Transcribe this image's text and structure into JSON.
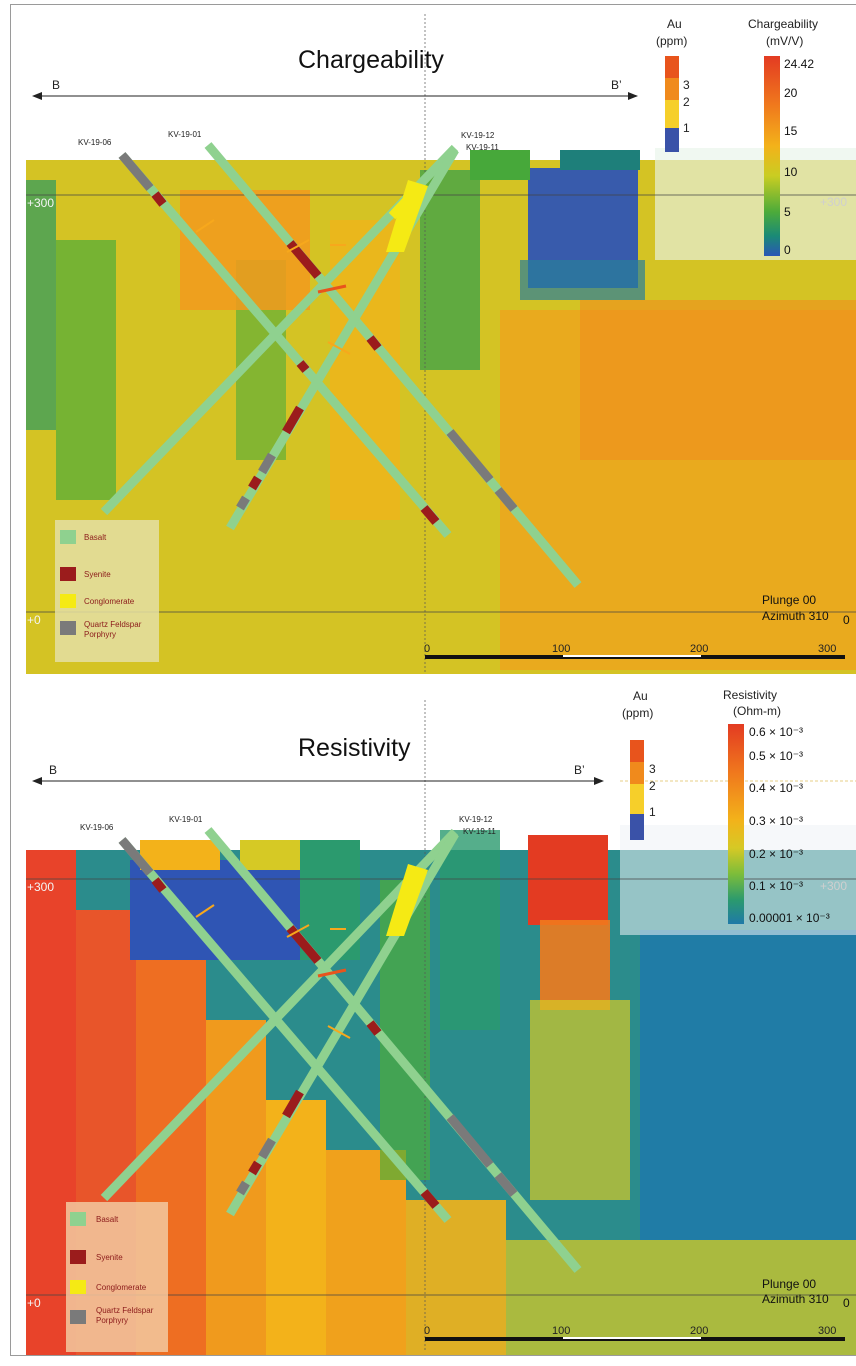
{
  "panels": [
    {
      "id": "charge",
      "title": "Chargeability",
      "section_start": "B",
      "section_end": "B’",
      "elevation_top": "+300",
      "elevation_top_right": "+300",
      "elevation_bottom": "+0",
      "elevation_bottom_right": "0",
      "plunge": "Plunge 00",
      "azimuth": "Azimuth 310",
      "au_scale": {
        "title_line1": "Au",
        "title_line2": "(ppm)",
        "ticks": [
          "3",
          "2",
          "1"
        ]
      },
      "colorbar": {
        "title_line1": "Chargeability",
        "title_line2": "(mV/V)",
        "ticks": [
          "24.42",
          "20",
          "15",
          "10",
          "5",
          "0"
        ]
      },
      "distance_ticks": [
        "0",
        "100",
        "200",
        "300"
      ],
      "drillholes": [
        "KV-19-06",
        "KV-19-01",
        "KV-19-12",
        "KV-19-11"
      ]
    },
    {
      "id": "resist",
      "title": "Resistivity",
      "section_start": "B",
      "section_end": "B’",
      "elevation_top": "+300",
      "elevation_top_right": "+300",
      "elevation_bottom": "+0",
      "elevation_bottom_right": "0",
      "plunge": "Plunge 00",
      "azimuth": "Azimuth 310",
      "au_scale": {
        "title_line1": "Au",
        "title_line2": "(ppm)",
        "ticks": [
          "3",
          "2",
          "1"
        ]
      },
      "colorbar": {
        "title_line1": "Resistivity",
        "title_line2": "(Ohm-m)",
        "ticks": [
          "0.6 × 10⁻³",
          "0.5 × 10⁻³",
          "0.4 × 10⁻³",
          "0.3 × 10⁻³",
          "0.2 × 10⁻³",
          "0.1 × 10⁻³",
          "0.00001 × 10⁻³"
        ]
      },
      "distance_ticks": [
        "0",
        "100",
        "200",
        "300"
      ],
      "drillholes": [
        "KV-19-06",
        "KV-19-01",
        "KV-19-12",
        "KV-19-11"
      ]
    }
  ],
  "legend": {
    "items": [
      {
        "label": "Basalt",
        "color": "#8fd18f"
      },
      {
        "label": "Syenite",
        "color": "#9b1c1c"
      },
      {
        "label": "Conglomerate",
        "color": "#f5ea14"
      },
      {
        "label_line1": "Quartz Feldspar",
        "label_line2": "Porphyry",
        "color": "#7a7a7a"
      }
    ]
  },
  "colors": {
    "au_ramp": [
      "#e8541c",
      "#f08a1c",
      "#f7a81c",
      "#f6cf2a",
      "#3a52a8"
    ],
    "charge_ramp": [
      "#e33b22",
      "#f07a1d",
      "#f3b21a",
      "#c9cd22",
      "#4cab3a",
      "#1a8a76",
      "#2a56b6"
    ],
    "resist_ramp": [
      "#e33b22",
      "#f07a1d",
      "#f3b21a",
      "#d6c925",
      "#7cbd3a",
      "#2b9a6e",
      "#1f7aa8"
    ]
  }
}
